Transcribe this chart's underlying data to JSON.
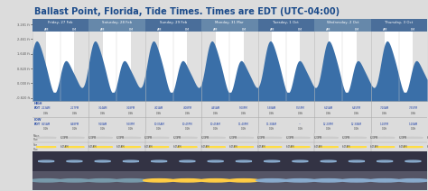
{
  "title": "Ballast Point, Florida, Tide Times. Times are EDT (UTC-04:00)",
  "title_color": "#1a4a8a",
  "title_fontsize": 7.0,
  "bg_color": "#dcdcdc",
  "chart_bg": "#ffffff",
  "header_bg_even": "#4a6e9a",
  "header_bg_odd": "#6688aa",
  "header_text_color": "#ffffff",
  "days": [
    "Friday, 27 Feb",
    "Saturday, 28 Feb",
    "Sunday, 29 Feb",
    "Monday, 31 Mar",
    "Tuesday, 1 Oct",
    "Wednesday, 2 Oct",
    "Thursday, 3 Oct"
  ],
  "fill_color": "#3a6fa8",
  "night_shade_color": "#c8c8c8",
  "night_shade_alpha": 0.55,
  "ylim_min": -1.0,
  "ylim_max": 3.6,
  "ytick_labels": [
    "3.281 ft",
    "2.461 ft",
    "1.640 ft",
    "0.820 ft",
    "0.000 ft",
    "-0.820 ft"
  ],
  "ytick_values": [
    3.281,
    2.461,
    1.64,
    0.82,
    0.0,
    -0.82
  ],
  "num_days": 7,
  "bottom_bg": "#e0e0e0",
  "tide_info_bg": "#f0f0f0",
  "high_label_color": "#3355aa",
  "low_label_color": "#3355aa",
  "row_divider_color": "#aaaaaa",
  "moon_row_bg": "#f5f5f5",
  "weather_row_bg": "#222244"
}
